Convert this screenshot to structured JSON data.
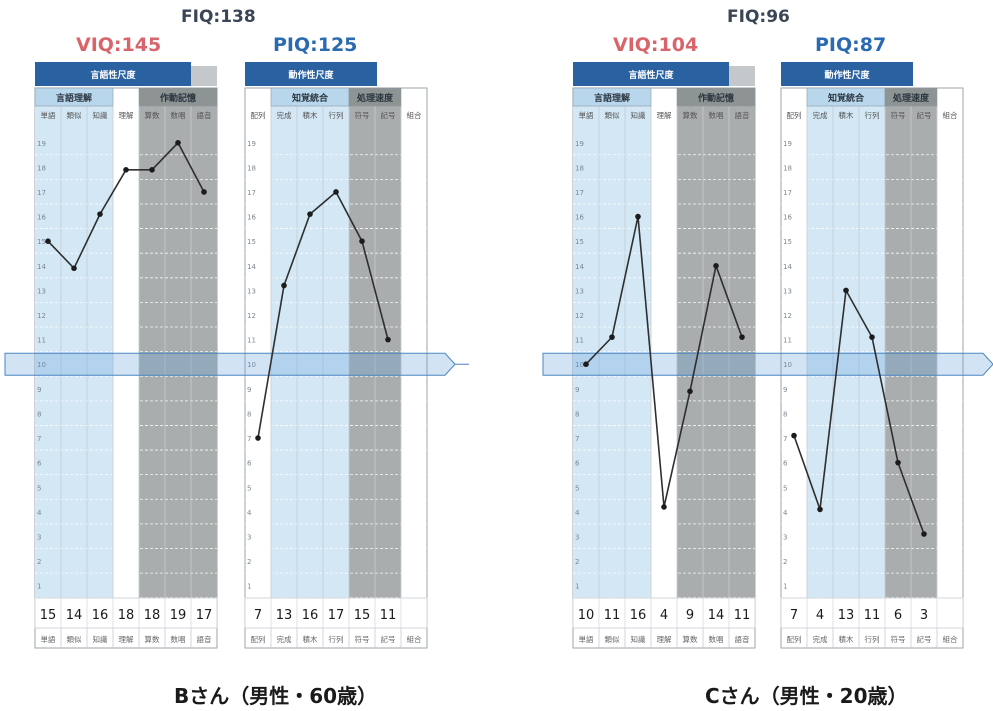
{
  "chart_data": [
    {
      "type": "line",
      "id": "B",
      "caption": "Bさん（男性・60歳）",
      "fiq": "FIQ:138",
      "viq": "VIQ:145",
      "piq": "PIQ:125",
      "scale_left": "言語性尺度",
      "scale_right": "動作性尺度",
      "group_left": [
        {
          "label": "言語理解",
          "span": [
            0,
            2
          ]
        },
        {
          "label": "作動記憶",
          "span": [
            4,
            6
          ]
        }
      ],
      "group_right": [
        {
          "label": "知覚統合",
          "span": [
            1,
            3
          ]
        },
        {
          "label": "処理速度",
          "span": [
            4,
            5
          ]
        }
      ],
      "subtests_left": [
        "単語",
        "類似",
        "知識",
        "理解",
        "算数",
        "数唱",
        "語音"
      ],
      "subtests_right": [
        "配列",
        "完成",
        "積木",
        "行列",
        "符号",
        "記号",
        "組合"
      ],
      "values_left": [
        15,
        14,
        16,
        18,
        18,
        19,
        17
      ],
      "values_right": [
        7,
        13,
        16,
        17,
        15,
        11,
        null
      ],
      "plot_left": [
        15,
        13.9,
        16.1,
        17.9,
        17.9,
        19,
        17
      ],
      "plot_right": [
        7,
        13.2,
        16.1,
        17,
        15,
        11,
        null
      ],
      "y_ticks": [
        1,
        2,
        3,
        4,
        5,
        6,
        7,
        8,
        9,
        10,
        11,
        12,
        13,
        14,
        15,
        16,
        17,
        18,
        19
      ],
      "ylim": [
        0.5,
        19.6
      ],
      "mean_band": 10
    },
    {
      "type": "line",
      "id": "C",
      "caption": "Cさん（男性・20歳）",
      "fiq": "FIQ:96",
      "viq": "VIQ:104",
      "piq": "PIQ:87",
      "scale_left": "言語性尺度",
      "scale_right": "動作性尺度",
      "group_left": [
        {
          "label": "言語理解",
          "span": [
            0,
            2
          ]
        },
        {
          "label": "作動記憶",
          "span": [
            4,
            6
          ]
        }
      ],
      "group_right": [
        {
          "label": "知覚統合",
          "span": [
            1,
            3
          ]
        },
        {
          "label": "処理速度",
          "span": [
            4,
            5
          ]
        }
      ],
      "subtests_left": [
        "単語",
        "類似",
        "知識",
        "理解",
        "算数",
        "数唱",
        "語音"
      ],
      "subtests_right": [
        "配列",
        "完成",
        "積木",
        "行列",
        "符号",
        "記号",
        "組合"
      ],
      "values_left": [
        10,
        11,
        16,
        4,
        9,
        14,
        11
      ],
      "values_right": [
        7,
        4,
        13,
        11,
        6,
        3,
        null
      ],
      "plot_left": [
        10,
        11.1,
        16,
        4.2,
        8.9,
        14,
        11.1
      ],
      "plot_right": [
        7.1,
        4.1,
        13,
        11.1,
        6,
        3.1,
        null
      ],
      "y_ticks": [
        1,
        2,
        3,
        4,
        5,
        6,
        7,
        8,
        9,
        10,
        11,
        12,
        13,
        14,
        15,
        16,
        17,
        18,
        19
      ],
      "ylim": [
        0.5,
        19.6
      ],
      "mean_band": 10
    }
  ],
  "colors": {
    "blue_col": "#d3e7f5",
    "grey_col": "#a9adae",
    "header_blue": "#2a62a1",
    "sub_blue": "#b8d6ec",
    "sub_grey": "#8e9394",
    "band_blue": "#5f9dd6",
    "line": "#2f2f2f"
  }
}
